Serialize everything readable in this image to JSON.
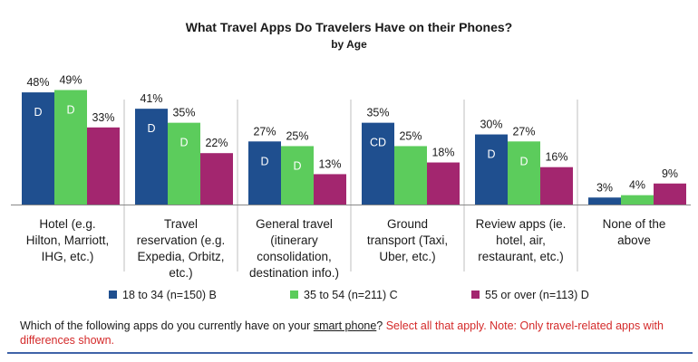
{
  "title": "What Travel Apps Do Travelers Have on their Phones?",
  "subtitle": "by Age",
  "question": {
    "main": "Which of the following apps do you currently have on your",
    "underlined": "smart phone",
    "qmark": "?",
    "note": " Select all that apply. Note: Only travel-related apps with differences shown."
  },
  "colors": {
    "series_18_34": "#1f4f8f",
    "series_35_54": "#5ccc5c",
    "series_55_over": "#a3266f",
    "axis": "#888888",
    "divider": "#bfbfbf",
    "rule": "#3f63a8",
    "note_text": "#d42a2a"
  },
  "chart_data": {
    "type": "bar",
    "ylim": [
      0,
      55
    ],
    "grid": false,
    "legend_position": "bottom",
    "categories": [
      [
        "Hotel (e.g.",
        "Hilton, Marriott,",
        "IHG, etc.)"
      ],
      [
        "Travel",
        "reservation (e.g.",
        "Expedia, Orbitz,",
        "etc.)"
      ],
      [
        "General travel",
        "(itinerary",
        "consolidation,",
        "destination info.)"
      ],
      [
        "Ground",
        "transport (Taxi,",
        "Uber, etc.)"
      ],
      [
        "Review apps  (ie.",
        "hotel, air,",
        "restaurant, etc.)"
      ],
      [
        "None of the",
        "above"
      ]
    ],
    "series": [
      {
        "name": "18 to 34 (n=150) B",
        "values": [
          48,
          41,
          27,
          35,
          30,
          3
        ],
        "value_labels": [
          "48%",
          "41%",
          "27%",
          "35%",
          "30%",
          "3%"
        ],
        "sig_labels": [
          "D",
          "D",
          "D",
          "CD",
          "D",
          ""
        ]
      },
      {
        "name": "35 to 54 (n=211) C",
        "values": [
          49,
          35,
          25,
          25,
          27,
          4
        ],
        "value_labels": [
          "49%",
          "35%",
          "25%",
          "25%",
          "27%",
          "4%"
        ],
        "sig_labels": [
          "D",
          "D",
          "D",
          "",
          "D",
          ""
        ]
      },
      {
        "name": "55 or over (n=113) D",
        "values": [
          33,
          22,
          13,
          18,
          16,
          9
        ],
        "value_labels": [
          "33%",
          "22%",
          "13%",
          "18%",
          "16%",
          "9%"
        ],
        "sig_labels": [
          "",
          "",
          "",
          "",
          "",
          ""
        ]
      }
    ]
  }
}
